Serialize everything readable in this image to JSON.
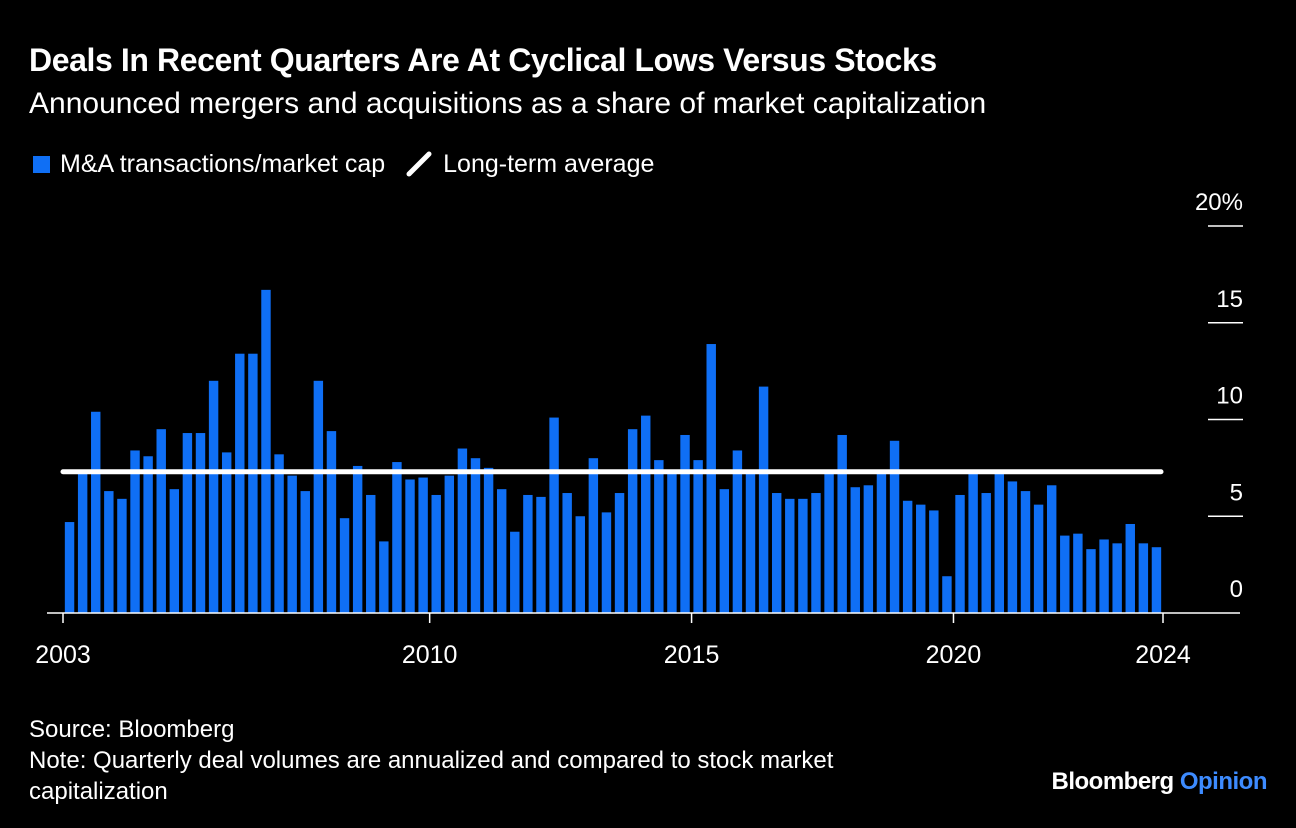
{
  "title": "Deals In Recent Quarters Are At Cyclical Lows Versus Stocks",
  "subtitle": "Announced mergers and acquisitions as a share of market capitalization",
  "legend": {
    "bars": "M&A transactions/market cap",
    "line": "Long-term average"
  },
  "source": "Source: Bloomberg",
  "note": "Note: Quarterly deal volumes are annualized and compared to stock market capitalization",
  "logo": {
    "brand": "Bloomberg",
    "accent": "Opinion"
  },
  "colors": {
    "bar": "#0f6ff5",
    "average_line": "#ffffff",
    "background": "#000000",
    "accent": "#3d8bff"
  },
  "chart_data": {
    "type": "bar",
    "title": "Deals In Recent Quarters Are At Cyclical Lows Versus Stocks",
    "xlabel": "",
    "ylabel": "",
    "ylim": [
      0,
      20
    ],
    "y_ticks": [
      {
        "value": 0,
        "label": "0"
      },
      {
        "value": 5,
        "label": "5"
      },
      {
        "value": 10,
        "label": "10"
      },
      {
        "value": 15,
        "label": "15"
      },
      {
        "value": 20,
        "label": "20%"
      }
    ],
    "x_ticks": [
      {
        "value": 2003,
        "label": "2003"
      },
      {
        "value": 2010,
        "label": "2010"
      },
      {
        "value": 2015,
        "label": "2015"
      },
      {
        "value": 2020,
        "label": "2020"
      },
      {
        "value": 2024,
        "label": "2024"
      }
    ],
    "x_start": 2003,
    "periods_per_year": 4,
    "series": [
      {
        "name": "M&A transactions/market cap",
        "values": [
          4.7,
          7.3,
          10.4,
          6.3,
          5.9,
          8.4,
          8.1,
          9.5,
          6.4,
          9.3,
          9.3,
          12.0,
          8.3,
          13.4,
          13.4,
          16.7,
          8.2,
          7.1,
          6.3,
          12.0,
          9.4,
          4.9,
          7.6,
          6.1,
          3.7,
          7.8,
          6.9,
          7.0,
          6.1,
          7.1,
          8.5,
          8.0,
          7.5,
          6.4,
          4.2,
          6.1,
          6.0,
          10.1,
          6.2,
          5.0,
          8.0,
          5.2,
          6.2,
          9.5,
          10.2,
          7.9,
          7.2,
          9.2,
          7.9,
          13.9,
          6.4,
          8.4,
          7.2,
          11.7,
          6.2,
          5.9,
          5.9,
          6.2,
          7.3,
          9.2,
          6.5,
          6.6,
          7.3,
          8.9,
          5.8,
          5.6,
          5.3,
          1.9,
          6.1,
          7.2,
          6.2,
          7.3,
          6.8,
          6.3,
          5.6,
          6.6,
          4.0,
          4.1,
          3.3,
          3.8,
          3.6,
          4.6,
          3.6,
          3.4
        ]
      },
      {
        "name": "Long-term average",
        "type": "line",
        "values": [
          7.3
        ]
      }
    ]
  }
}
